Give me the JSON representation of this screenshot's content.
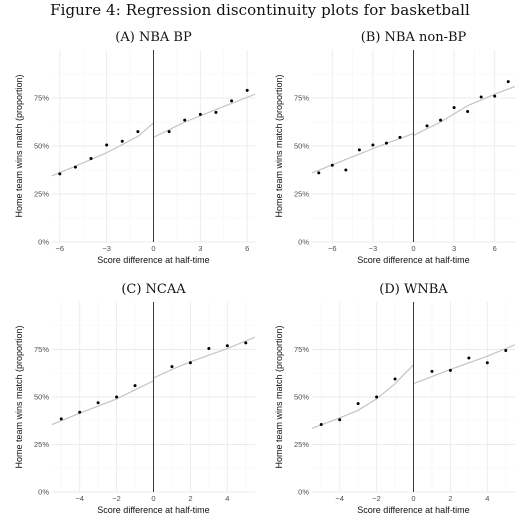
{
  "figure_title": "Figure 4: Regression discontinuity plots for basketball",
  "colors": {
    "fit_line": "#c4c4c4",
    "points": "#000000",
    "cutoff": "#3a3a3a",
    "grid_major": "#ebebeb",
    "grid_minor": "#f5f5f5"
  },
  "chart_data": [
    {
      "type": "scatter",
      "title": "(A) NBA BP",
      "xlabel": "Score difference at half-time",
      "ylabel": "Home team wins match (proportion)",
      "xlim": [
        -6.5,
        6.5
      ],
      "ylim": [
        0,
        1
      ],
      "x_ticks": [
        -6,
        -3,
        0,
        3,
        6
      ],
      "y_ticks": [
        0,
        0.25,
        0.5,
        0.75
      ],
      "y_tick_labels": [
        "0%",
        "25%",
        "50%",
        "75%"
      ],
      "cutoff": 0,
      "points": [
        [
          -6,
          0.355
        ],
        [
          -5,
          0.39
        ],
        [
          -4,
          0.435
        ],
        [
          -3,
          0.505
        ],
        [
          -2,
          0.525
        ],
        [
          -1,
          0.575
        ],
        [
          1,
          0.575
        ],
        [
          2,
          0.635
        ],
        [
          3,
          0.665
        ],
        [
          4,
          0.675
        ],
        [
          5,
          0.735
        ],
        [
          6,
          0.79
        ]
      ],
      "fit_left": [
        [
          -6.5,
          0.345
        ],
        [
          -5,
          0.395
        ],
        [
          -3,
          0.465
        ],
        [
          -1,
          0.55
        ],
        [
          0,
          0.62
        ]
      ],
      "fit_right": [
        [
          0,
          0.545
        ],
        [
          2,
          0.625
        ],
        [
          4,
          0.69
        ],
        [
          6.5,
          0.77
        ]
      ]
    },
    {
      "type": "scatter",
      "title": "(B) NBA non-BP",
      "xlabel": "Score difference at half-time",
      "ylabel": "Home team wins match (proportion)",
      "xlim": [
        -7.5,
        7.5
      ],
      "ylim": [
        0,
        1
      ],
      "x_ticks": [
        -6,
        -3,
        0,
        3,
        6
      ],
      "y_ticks": [
        0,
        0.25,
        0.5,
        0.75
      ],
      "y_tick_labels": [
        "0%",
        "25%",
        "50%",
        "75%"
      ],
      "cutoff": 0,
      "points": [
        [
          -7,
          0.36
        ],
        [
          -6,
          0.4
        ],
        [
          -5,
          0.375
        ],
        [
          -4,
          0.48
        ],
        [
          -3,
          0.505
        ],
        [
          -2,
          0.515
        ],
        [
          -1,
          0.545
        ],
        [
          1,
          0.605
        ],
        [
          2,
          0.635
        ],
        [
          3,
          0.7
        ],
        [
          4,
          0.68
        ],
        [
          5,
          0.755
        ],
        [
          6,
          0.76
        ],
        [
          7,
          0.835
        ]
      ],
      "fit_left": [
        [
          -7.5,
          0.36
        ],
        [
          -5,
          0.43
        ],
        [
          -2.5,
          0.5
        ],
        [
          0,
          0.565
        ]
      ],
      "fit_right": [
        [
          0,
          0.555
        ],
        [
          2,
          0.625
        ],
        [
          4,
          0.71
        ],
        [
          6,
          0.77
        ],
        [
          7.5,
          0.81
        ]
      ]
    },
    {
      "type": "scatter",
      "title": "(C) NCAA",
      "xlabel": "Score difference at half-time",
      "ylabel": "Home team wins match (proportion)",
      "xlim": [
        -5.5,
        5.5
      ],
      "ylim": [
        0,
        1
      ],
      "x_ticks": [
        -4,
        -2,
        0,
        2,
        4
      ],
      "y_ticks": [
        0,
        0.25,
        0.5,
        0.75
      ],
      "y_tick_labels": [
        "0%",
        "25%",
        "50%",
        "75%"
      ],
      "cutoff": 0,
      "points": [
        [
          -5,
          0.385
        ],
        [
          -4,
          0.42
        ],
        [
          -3,
          0.47
        ],
        [
          -2,
          0.5
        ],
        [
          -1,
          0.56
        ],
        [
          1,
          0.66
        ],
        [
          2,
          0.68
        ],
        [
          3,
          0.755
        ],
        [
          4,
          0.77
        ],
        [
          5,
          0.785
        ]
      ],
      "fit_left": [
        [
          -5.5,
          0.355
        ],
        [
          -4,
          0.415
        ],
        [
          -2,
          0.49
        ],
        [
          0,
          0.585
        ]
      ],
      "fit_right": [
        [
          0,
          0.6
        ],
        [
          1,
          0.645
        ],
        [
          2,
          0.685
        ],
        [
          3,
          0.72
        ],
        [
          4,
          0.755
        ],
        [
          5.5,
          0.815
        ]
      ]
    },
    {
      "type": "scatter",
      "title": "(D) WNBA",
      "xlabel": "Score difference at half-time",
      "ylabel": "Home team wins match (proportion)",
      "xlim": [
        -5.5,
        5.5
      ],
      "ylim": [
        0,
        1
      ],
      "x_ticks": [
        -4,
        -2,
        0,
        2,
        4
      ],
      "y_ticks": [
        0,
        0.25,
        0.5,
        0.75
      ],
      "y_tick_labels": [
        "0%",
        "25%",
        "50%",
        "75%"
      ],
      "cutoff": 0,
      "points": [
        [
          -5,
          0.355
        ],
        [
          -4,
          0.38
        ],
        [
          -3,
          0.465
        ],
        [
          -2,
          0.5
        ],
        [
          -1,
          0.595
        ],
        [
          1,
          0.635
        ],
        [
          2,
          0.64
        ],
        [
          3,
          0.705
        ],
        [
          4,
          0.68
        ],
        [
          5,
          0.745
        ]
      ],
      "fit_left": [
        [
          -5.5,
          0.335
        ],
        [
          -4,
          0.39
        ],
        [
          -3,
          0.43
        ],
        [
          -2,
          0.49
        ],
        [
          -1,
          0.57
        ],
        [
          0,
          0.67
        ]
      ],
      "fit_right": [
        [
          0,
          0.57
        ],
        [
          2,
          0.645
        ],
        [
          4,
          0.715
        ],
        [
          5.5,
          0.775
        ]
      ]
    }
  ]
}
